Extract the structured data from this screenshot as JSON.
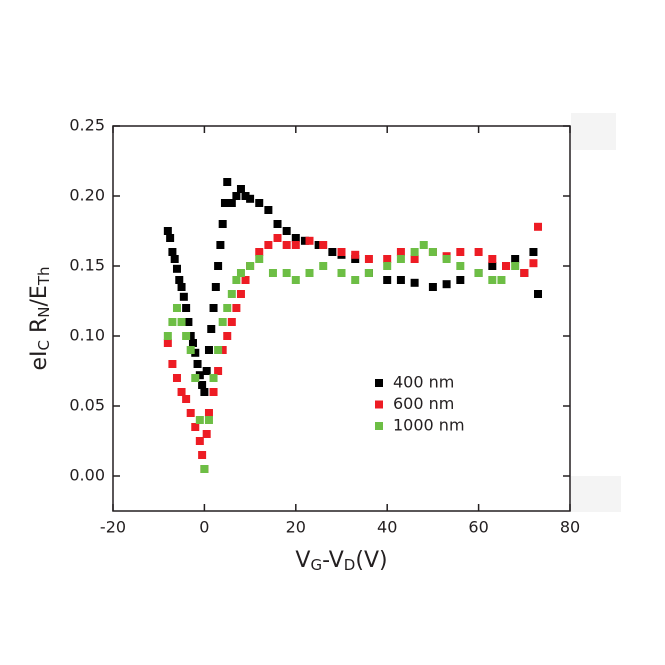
{
  "chart_data": {
    "type": "scatter",
    "xlabel": [
      {
        "text": "V"
      },
      {
        "text": "G",
        "sub": true
      },
      {
        "text": "-V"
      },
      {
        "text": "D",
        "sub": true
      },
      {
        "text": "(V)"
      }
    ],
    "ylabel": [
      {
        "text": "eI"
      },
      {
        "text": "C",
        "sub": true
      },
      {
        "text": " R"
      },
      {
        "text": "N",
        "sub": true
      },
      {
        "text": "/E"
      },
      {
        "text": "Th",
        "sub": true
      }
    ],
    "xlim": [
      -20,
      80
    ],
    "ylim": [
      -0.025,
      0.25
    ],
    "xticks": [
      -20,
      0,
      20,
      40,
      60,
      80
    ],
    "yticks": [
      {
        "value": 0,
        "label": "0.00"
      },
      {
        "value": 0.05,
        "label": "0.05"
      },
      {
        "value": 0.1,
        "label": "0.10"
      },
      {
        "value": 0.15,
        "label": "0.15"
      },
      {
        "value": 0.2,
        "label": "0.20"
      },
      {
        "value": 0.25,
        "label": "0.25"
      }
    ],
    "legend": "lower-right",
    "series": [
      {
        "name": "400 nm",
        "color": "#000000",
        "x": [
          -8,
          -7.5,
          -7,
          -6.5,
          -6,
          -5.5,
          -5,
          -4.5,
          -4,
          -3.5,
          -3,
          -2.5,
          -2,
          -1.5,
          -1,
          -0.5,
          0,
          0.5,
          1,
          1.5,
          2,
          2.5,
          3,
          3.5,
          4,
          4.5,
          5,
          6,
          7,
          8,
          9,
          10,
          12,
          14,
          16,
          18,
          20,
          22,
          25,
          28,
          30,
          33,
          36,
          40,
          43,
          46,
          50,
          53,
          56,
          60,
          63,
          66,
          68,
          70,
          72,
          73
        ],
        "values": [
          0.175,
          0.17,
          0.16,
          0.155,
          0.148,
          0.14,
          0.135,
          0.128,
          0.12,
          0.11,
          0.1,
          0.095,
          0.088,
          0.08,
          0.072,
          0.065,
          0.06,
          0.075,
          0.09,
          0.105,
          0.12,
          0.135,
          0.15,
          0.165,
          0.18,
          0.195,
          0.21,
          0.195,
          0.2,
          0.205,
          0.2,
          0.198,
          0.195,
          0.19,
          0.18,
          0.175,
          0.17,
          0.168,
          0.165,
          0.16,
          0.158,
          0.155,
          0.145,
          0.14,
          0.14,
          0.138,
          0.135,
          0.137,
          0.14,
          0.145,
          0.15,
          0.15,
          0.155,
          0.145,
          0.16,
          0.13
        ]
      },
      {
        "name": "600 nm",
        "color": "#ed1c24",
        "x": [
          -8,
          -7,
          -6,
          -5,
          -4,
          -3,
          -2,
          -1,
          -0.5,
          0,
          0.5,
          1,
          2,
          3,
          4,
          5,
          6,
          7,
          8,
          9,
          10,
          12,
          14,
          16,
          18,
          20,
          23,
          26,
          30,
          33,
          36,
          40,
          43,
          46,
          50,
          53,
          56,
          60,
          63,
          66,
          70,
          72,
          73
        ],
        "values": [
          0.095,
          0.08,
          0.07,
          0.06,
          0.055,
          0.045,
          0.035,
          0.025,
          0.015,
          0.005,
          0.03,
          0.045,
          0.06,
          0.075,
          0.09,
          0.1,
          0.11,
          0.12,
          0.13,
          0.14,
          0.15,
          0.16,
          0.165,
          0.17,
          0.165,
          0.165,
          0.168,
          0.165,
          0.16,
          0.158,
          0.155,
          0.155,
          0.16,
          0.155,
          0.16,
          0.157,
          0.16,
          0.16,
          0.155,
          0.15,
          0.145,
          0.152,
          0.178
        ]
      },
      {
        "name": "1000 nm",
        "color": "#6dbe45",
        "x": [
          -8,
          -7,
          -6,
          -5,
          -4,
          -3,
          -2,
          -1,
          0,
          1,
          2,
          3,
          4,
          5,
          6,
          7,
          8,
          10,
          12,
          15,
          18,
          20,
          23,
          26,
          30,
          33,
          36,
          40,
          43,
          46,
          48,
          50,
          53,
          56,
          60,
          63,
          65,
          68
        ],
        "values": [
          0.1,
          0.11,
          0.12,
          0.11,
          0.1,
          0.09,
          0.07,
          0.04,
          0.005,
          0.04,
          0.07,
          0.09,
          0.11,
          0.12,
          0.13,
          0.14,
          0.145,
          0.15,
          0.155,
          0.145,
          0.145,
          0.14,
          0.145,
          0.15,
          0.145,
          0.14,
          0.145,
          0.15,
          0.155,
          0.16,
          0.165,
          0.16,
          0.155,
          0.15,
          0.145,
          0.14,
          0.14,
          0.15
        ]
      }
    ]
  }
}
